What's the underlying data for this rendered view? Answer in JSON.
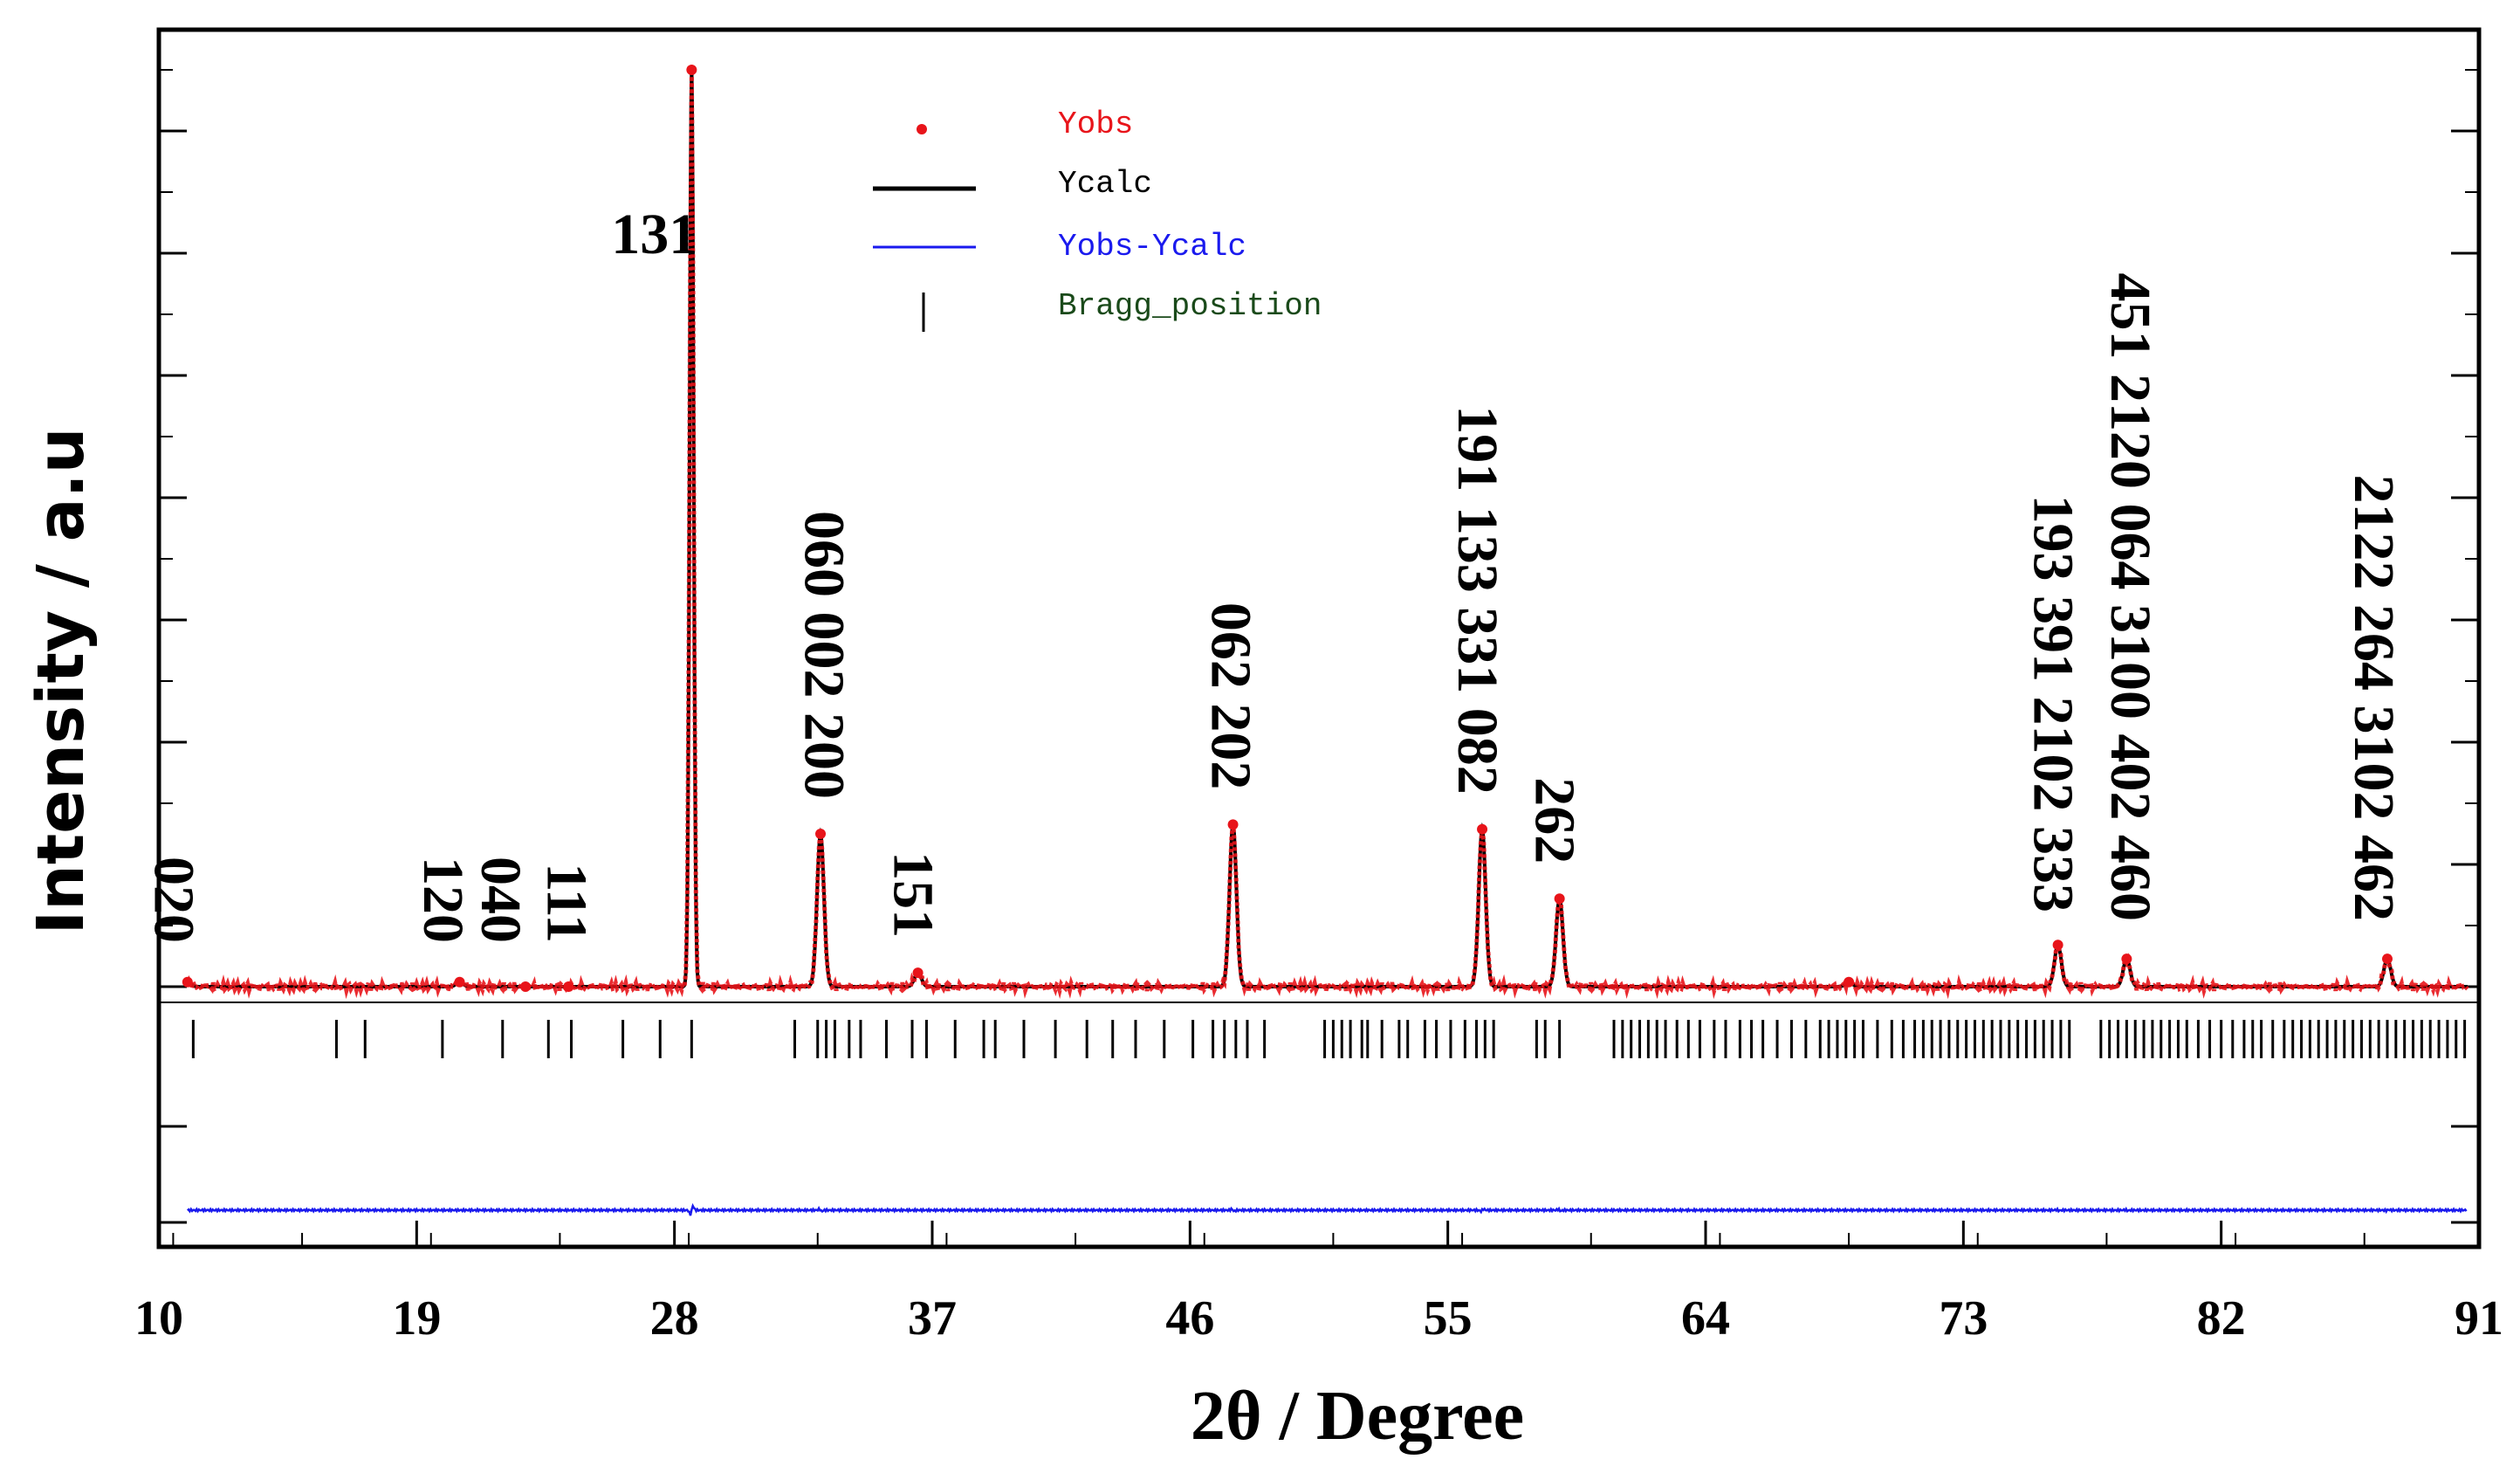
{
  "chart_data": {
    "type": "line",
    "title": "",
    "xlabel": "2θ / Degree",
    "ylabel": "Intensity / a.u",
    "xlim": [
      10,
      91
    ],
    "ylim": [
      0,
      100
    ],
    "x_ticks": [
      "10",
      "19",
      "28",
      "37",
      "46",
      "55",
      "64",
      "73",
      "82",
      "91"
    ],
    "legend": {
      "position": "top-center",
      "entries": [
        {
          "label": "Yobs",
          "color": "#e8141a",
          "marker": "dot"
        },
        {
          "label": "Ycalc",
          "color": "#000000",
          "marker": "line"
        },
        {
          "label": "Yobs-Ycalc",
          "color": "#1a1aee",
          "marker": "line"
        },
        {
          "label": "Bragg_position",
          "color": "#1a4a1a",
          "marker": "tick"
        }
      ]
    },
    "baseline": 1.0,
    "peaks": [
      {
        "x": 11.0,
        "intensity": 1.5
      },
      {
        "x": 20.5,
        "intensity": 1.5
      },
      {
        "x": 22.8,
        "intensity": 1.0
      },
      {
        "x": 24.3,
        "intensity": 1.0
      },
      {
        "x": 28.6,
        "intensity": 100
      },
      {
        "x": 33.1,
        "intensity": 17.5
      },
      {
        "x": 36.5,
        "intensity": 2.5
      },
      {
        "x": 47.5,
        "intensity": 18.5
      },
      {
        "x": 56.2,
        "intensity": 18.0
      },
      {
        "x": 58.9,
        "intensity": 10.5
      },
      {
        "x": 69.0,
        "intensity": 1.5
      },
      {
        "x": 76.3,
        "intensity": 5.5
      },
      {
        "x": 78.7,
        "intensity": 4.0
      },
      {
        "x": 87.8,
        "intensity": 4.0
      }
    ],
    "difference_spikes": [
      {
        "x": 11.0,
        "value": 0.0
      },
      {
        "x": 28.6,
        "value": 8.0
      },
      {
        "x": 33.1,
        "value": 2.0
      },
      {
        "x": 47.5,
        "value": 2.0
      },
      {
        "x": 56.2,
        "value": 2.0
      },
      {
        "x": 58.9,
        "value": 1.5
      },
      {
        "x": 76.3,
        "value": 0.8
      },
      {
        "x": 78.7,
        "value": 0.8
      },
      {
        "x": 87.8,
        "value": 0.8
      }
    ],
    "bragg_positions": [
      11.2,
      16.2,
      17.2,
      19.9,
      22.0,
      23.6,
      24.4,
      26.2,
      27.5,
      28.6,
      32.2,
      33.0,
      33.3,
      33.6,
      34.1,
      34.5,
      35.4,
      36.3,
      36.8,
      37.8,
      38.8,
      39.2,
      40.2,
      41.3,
      42.4,
      43.3,
      44.1,
      45.1,
      46.1,
      46.8,
      47.2,
      47.6,
      48.0,
      48.6,
      50.7,
      51.0,
      51.3,
      51.6,
      52.0,
      52.2,
      52.7,
      53.3,
      53.6,
      54.2,
      54.6,
      55.1,
      55.6,
      56.0,
      56.3,
      56.6,
      58.1,
      58.4,
      58.9,
      60.8,
      61.1,
      61.4,
      61.7,
      62.0,
      62.3,
      62.6,
      63.0,
      63.4,
      63.8,
      64.3,
      64.7,
      65.2,
      65.6,
      66.0,
      66.5,
      67.0,
      67.5,
      68.0,
      68.3,
      68.6,
      68.9,
      69.2,
      69.5,
      70.0,
      70.5,
      70.9,
      71.3,
      71.6,
      71.9,
      72.2,
      72.5,
      72.8,
      73.1,
      73.4,
      73.7,
      74.0,
      74.3,
      74.6,
      74.9,
      75.2,
      75.5,
      75.8,
      76.1,
      76.4,
      76.7,
      77.8,
      78.1,
      78.4,
      78.7,
      79.0,
      79.3,
      79.6,
      79.9,
      80.2,
      80.5,
      80.8,
      81.2,
      81.6,
      82.0,
      82.4,
      82.8,
      83.1,
      83.4,
      83.8,
      84.2,
      84.5,
      84.8,
      85.1,
      85.4,
      85.7,
      86.0,
      86.3,
      86.6,
      86.9,
      87.2,
      87.5,
      87.8,
      88.1,
      88.4,
      88.7,
      89.0,
      89.3,
      89.6,
      89.9,
      90.2,
      90.5
    ],
    "peak_labels": [
      {
        "text": "131",
        "x": 27.3,
        "orientation": "horizontal"
      },
      {
        "text": "020",
        "x": 10.6,
        "orientation": "vertical"
      },
      {
        "text": "120",
        "x": 20.0,
        "orientation": "vertical"
      },
      {
        "text": "040",
        "x": 22.0,
        "orientation": "vertical"
      },
      {
        "text": "111",
        "x": 24.3,
        "orientation": "vertical"
      },
      {
        "text": "060 002 200",
        "x": 33.3,
        "orientation": "vertical"
      },
      {
        "text": "151",
        "x": 36.4,
        "orientation": "vertical"
      },
      {
        "text": "062 202",
        "x": 47.5,
        "orientation": "vertical"
      },
      {
        "text": "191 133 331 082",
        "x": 56.1,
        "orientation": "vertical"
      },
      {
        "text": "262",
        "x": 58.8,
        "orientation": "vertical"
      },
      {
        "text": "193 391 2102 333",
        "x": 76.2,
        "orientation": "vertical"
      },
      {
        "text": "451 2120 064 3100 402 460",
        "x": 78.9,
        "orientation": "vertical"
      },
      {
        "text": "2122 264 3102 462",
        "x": 87.4,
        "orientation": "vertical"
      }
    ]
  }
}
